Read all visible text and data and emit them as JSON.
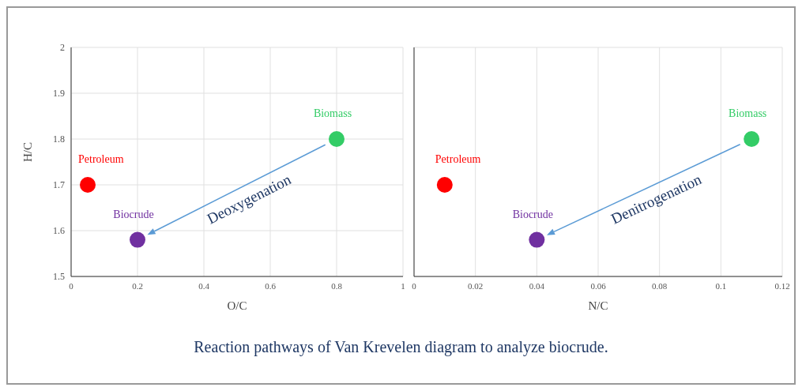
{
  "chart_data": [
    {
      "type": "scatter",
      "xlabel": "O/C",
      "ylabel": "H/C",
      "xlim": [
        0,
        1
      ],
      "xticks": [
        0,
        0.2,
        0.4,
        0.6,
        0.8,
        1
      ],
      "ylim": [
        1.5,
        2
      ],
      "yticks": [
        1.5,
        1.6,
        1.7,
        1.8,
        1.9,
        2
      ],
      "grid": true,
      "marker": "circle",
      "series": [
        {
          "name": "Petroleum",
          "color": "#ff0000",
          "x": [
            0.05
          ],
          "values": [
            1.7
          ]
        },
        {
          "name": "Biocrude",
          "color": "#7030a0",
          "x": [
            0.2
          ],
          "values": [
            1.58
          ]
        },
        {
          "name": "Biomass",
          "color": "#33cc66",
          "x": [
            0.8
          ],
          "values": [
            1.8
          ]
        }
      ],
      "annotations": [
        "Deoxygenation",
        "Reaction pathways of Van Krevelen diagram to analyze biocrude."
      ]
    },
    {
      "type": "scatter",
      "xlabel": "N/C",
      "xlim": [
        0,
        0.12
      ],
      "xticks": [
        0,
        0.02,
        0.04,
        0.06,
        0.08,
        0.1,
        0.12
      ],
      "ylim": [
        1.5,
        2
      ],
      "yticks": [
        1.5,
        1.6,
        1.7,
        1.8,
        1.9,
        2
      ],
      "grid": true,
      "marker": "circle",
      "tick_labels": "x",
      "series": [
        {
          "name": "Petroleum",
          "color": "#ff0000",
          "x": [
            0.01
          ],
          "values": [
            1.7
          ]
        },
        {
          "name": "Biocrude",
          "color": "#7030a0",
          "x": [
            0.04
          ],
          "values": [
            1.58
          ]
        },
        {
          "name": "Biomass",
          "color": "#33cc66",
          "x": [
            0.11
          ],
          "values": [
            1.8
          ]
        }
      ],
      "annotations": [
        "Denitrogenation"
      ]
    }
  ]
}
